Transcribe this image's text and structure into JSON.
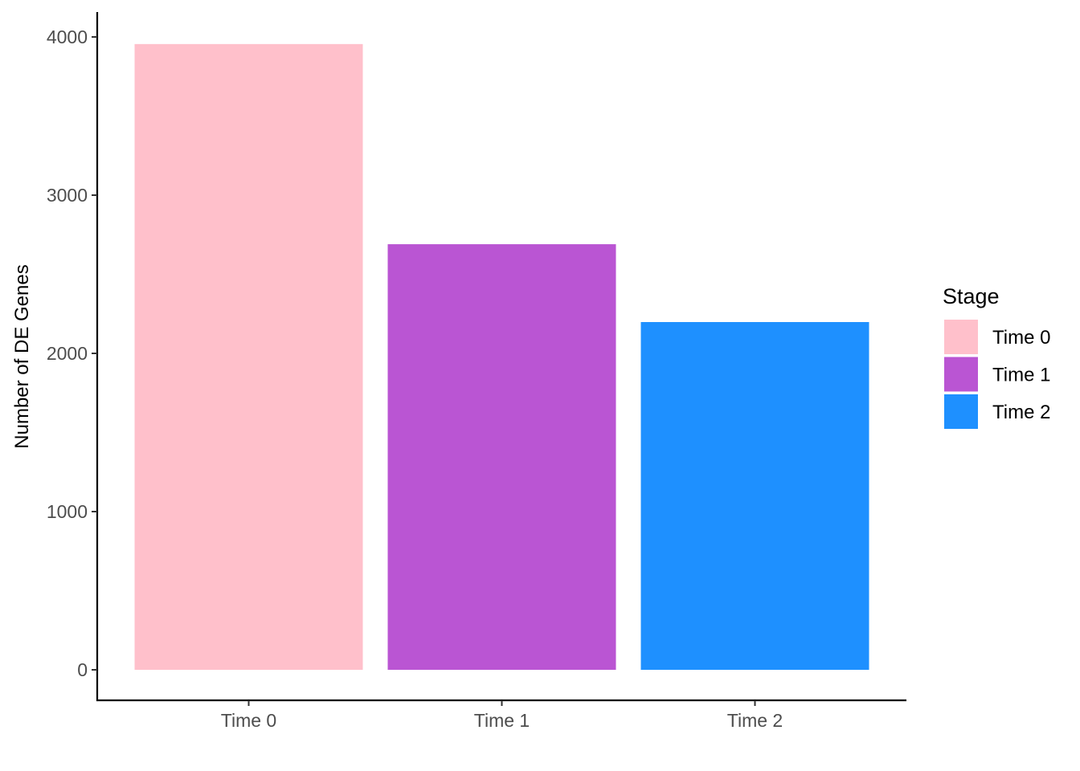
{
  "chart_data": {
    "type": "bar",
    "title": "",
    "xlabel": "",
    "ylabel": "Number of DE Genes",
    "categories": [
      "Time 0",
      "Time 1",
      "Time 2"
    ],
    "values": [
      3955,
      2690,
      2198
    ],
    "colors": [
      "#FFC0CB",
      "#BA55D3",
      "#1E90FF"
    ],
    "ylim": [
      0,
      4000
    ],
    "yticks": [
      0,
      1000,
      2000,
      3000,
      4000
    ],
    "grid": false,
    "legend": {
      "title": "Stage",
      "position": "right",
      "entries": [
        "Time 0",
        "Time 1",
        "Time 2"
      ]
    }
  }
}
